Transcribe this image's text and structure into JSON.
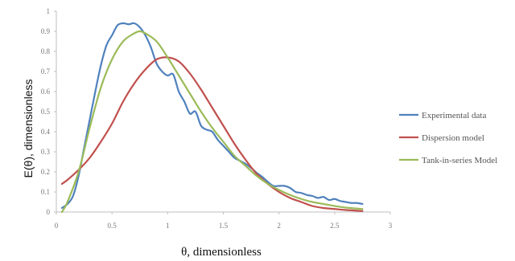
{
  "chart_data": {
    "type": "line",
    "xlabel": "θ, dimensionless",
    "ylabel": "E(θ), dimensionless",
    "xlim": [
      0,
      3
    ],
    "ylim": [
      0,
      1
    ],
    "x_ticks": [
      "0",
      "0.5",
      "1",
      "1.5",
      "2",
      "2.5",
      "3"
    ],
    "y_ticks": [
      "0",
      "0.1",
      "0.2",
      "0.3",
      "0.4",
      "0.5",
      "0.6",
      "0.7",
      "0.8",
      "0.9",
      "1"
    ],
    "grid": false,
    "legend_position": "right",
    "series": [
      {
        "name": "Experimental data",
        "color": "#4f81bd",
        "x": [
          0.05,
          0.1,
          0.15,
          0.2,
          0.25,
          0.3,
          0.35,
          0.4,
          0.45,
          0.5,
          0.55,
          0.6,
          0.65,
          0.7,
          0.75,
          0.8,
          0.85,
          0.9,
          0.95,
          1.0,
          1.05,
          1.1,
          1.15,
          1.2,
          1.25,
          1.3,
          1.35,
          1.4,
          1.45,
          1.5,
          1.55,
          1.6,
          1.65,
          1.7,
          1.75,
          1.8,
          1.85,
          1.9,
          1.95,
          2.0,
          2.05,
          2.1,
          2.15,
          2.2,
          2.25,
          2.3,
          2.35,
          2.4,
          2.45,
          2.5,
          2.55,
          2.6,
          2.65,
          2.7,
          2.75
        ],
        "y": [
          0.02,
          0.04,
          0.08,
          0.18,
          0.32,
          0.46,
          0.6,
          0.73,
          0.83,
          0.88,
          0.93,
          0.94,
          0.935,
          0.94,
          0.92,
          0.88,
          0.82,
          0.74,
          0.7,
          0.68,
          0.685,
          0.6,
          0.55,
          0.49,
          0.5,
          0.43,
          0.41,
          0.4,
          0.36,
          0.33,
          0.3,
          0.27,
          0.255,
          0.24,
          0.22,
          0.195,
          0.175,
          0.15,
          0.13,
          0.13,
          0.13,
          0.12,
          0.1,
          0.095,
          0.085,
          0.08,
          0.07,
          0.075,
          0.06,
          0.065,
          0.055,
          0.05,
          0.045,
          0.045,
          0.04
        ]
      },
      {
        "name": "Dispersion model",
        "color": "#c0504d",
        "x": [
          0.05,
          0.1,
          0.2,
          0.3,
          0.4,
          0.5,
          0.6,
          0.7,
          0.8,
          0.9,
          1.0,
          1.1,
          1.2,
          1.3,
          1.4,
          1.5,
          1.6,
          1.7,
          1.8,
          1.9,
          2.0,
          2.1,
          2.2,
          2.3,
          2.4,
          2.5,
          2.6,
          2.75
        ],
        "y": [
          0.14,
          0.16,
          0.21,
          0.27,
          0.35,
          0.44,
          0.55,
          0.64,
          0.71,
          0.76,
          0.77,
          0.75,
          0.69,
          0.61,
          0.52,
          0.43,
          0.34,
          0.26,
          0.19,
          0.14,
          0.1,
          0.07,
          0.05,
          0.03,
          0.02,
          0.015,
          0.01,
          0.005
        ]
      },
      {
        "name": "Tank-in-series Model",
        "color": "#9bbb59",
        "x": [
          0.05,
          0.1,
          0.2,
          0.3,
          0.4,
          0.5,
          0.6,
          0.7,
          0.75,
          0.8,
          0.9,
          1.0,
          1.1,
          1.2,
          1.3,
          1.4,
          1.5,
          1.6,
          1.7,
          1.8,
          1.9,
          2.0,
          2.1,
          2.2,
          2.3,
          2.4,
          2.5,
          2.6,
          2.75
        ],
        "y": [
          0.0,
          0.05,
          0.2,
          0.42,
          0.62,
          0.76,
          0.85,
          0.89,
          0.9,
          0.89,
          0.85,
          0.77,
          0.68,
          0.59,
          0.5,
          0.42,
          0.35,
          0.28,
          0.23,
          0.18,
          0.14,
          0.11,
          0.085,
          0.065,
          0.05,
          0.04,
          0.03,
          0.022,
          0.015
        ]
      }
    ]
  }
}
